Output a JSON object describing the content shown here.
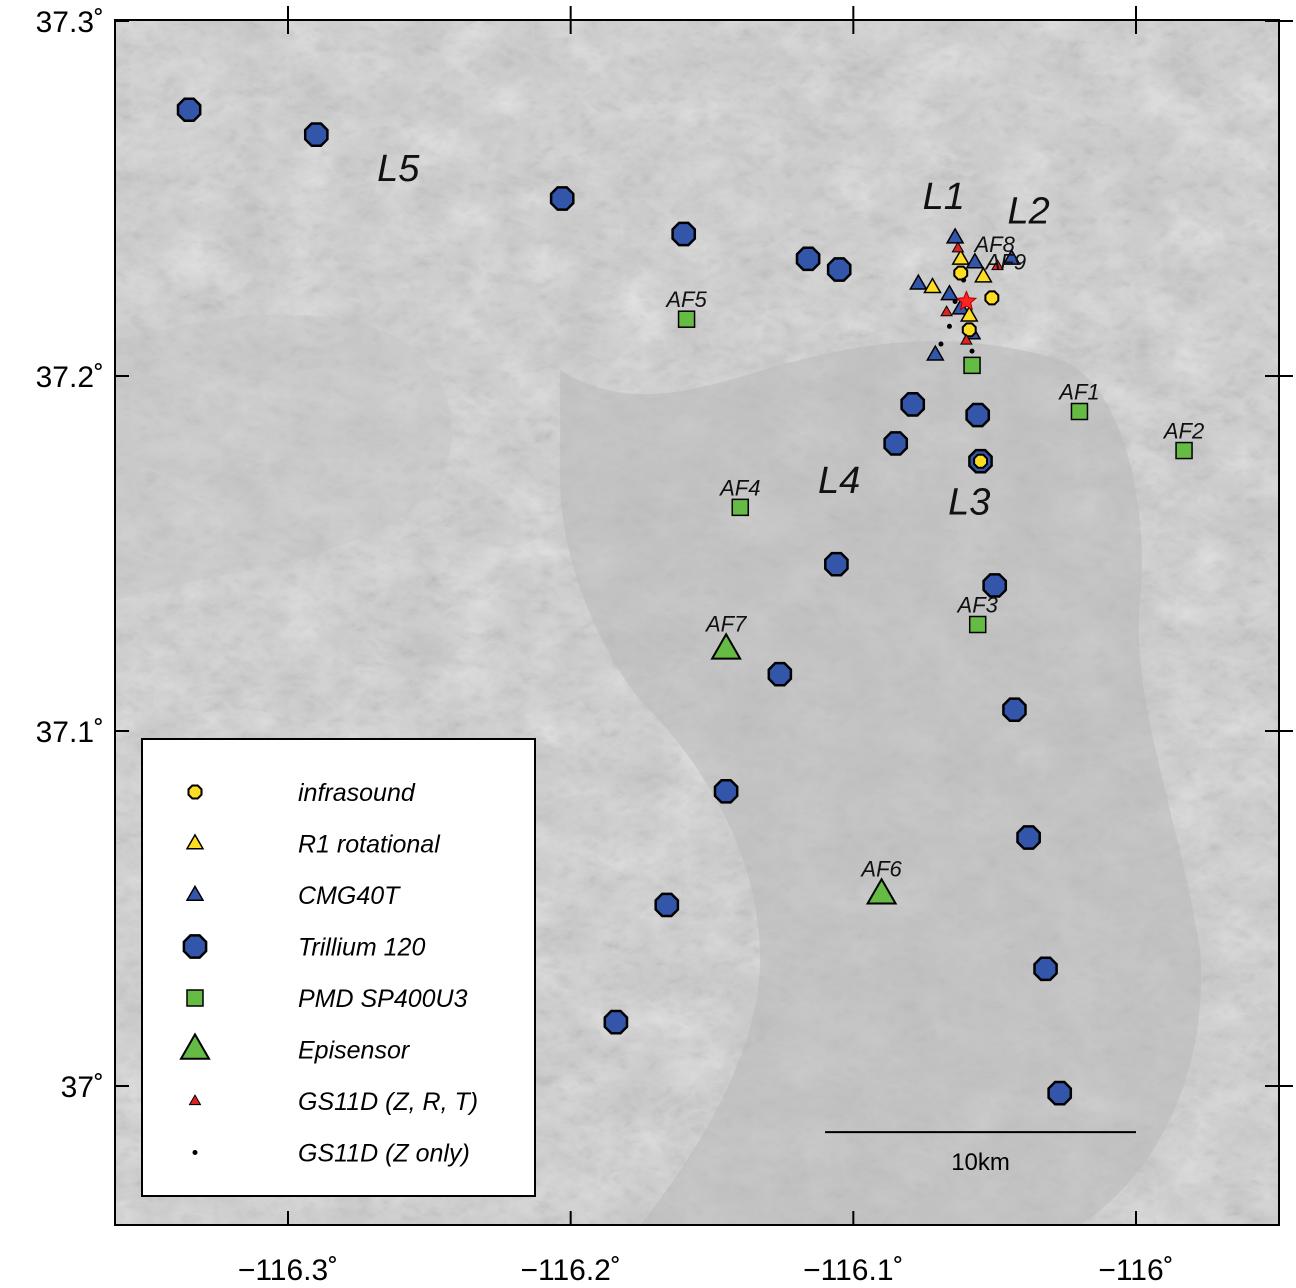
{
  "map": {
    "lon_range": [
      -116.35,
      -115.95
    ],
    "lat_range": [
      37.0,
      37.3
    ],
    "x_ticks": [
      {
        "value": -116.3,
        "label": "−116.3˚"
      },
      {
        "value": -116.2,
        "label": "−116.2˚"
      },
      {
        "value": -116.1,
        "label": "−116.1˚"
      },
      {
        "value": -116.0,
        "label": "−116˚"
      }
    ],
    "y_ticks": [
      {
        "value": 37.3,
        "label": "37.3˚"
      },
      {
        "value": 37.2,
        "label": "37.2˚"
      },
      {
        "value": 37.1,
        "label": "37.1˚"
      },
      {
        "value": 37.0,
        "label": "37˚"
      }
    ],
    "colors": {
      "trillium": "#3355aa",
      "infrasound": "#ffdd22",
      "r1": "#ffdd22",
      "cmg40t": "#3355aa",
      "pmd": "#66bb44",
      "episensor": "#66bb44",
      "gs11d": "#dd2222",
      "source_star": "#ff2222",
      "terrain_light": "#d4d4d4",
      "terrain_dark": "#9a9a9a"
    },
    "region_labels": [
      {
        "text": "L5",
        "lon": -116.261,
        "lat": 37.255
      },
      {
        "text": "L1",
        "lon": -116.068,
        "lat": 37.247
      },
      {
        "text": "L2",
        "lon": -116.038,
        "lat": 37.243
      },
      {
        "text": "L4",
        "lon": -116.105,
        "lat": 37.167
      },
      {
        "text": "L3",
        "lon": -116.059,
        "lat": 37.161
      }
    ],
    "scale_bar": {
      "label": "10km",
      "lon_start": -116.11,
      "lon_end": -116.0,
      "lat": 36.987
    }
  },
  "legend": {
    "items": [
      {
        "symbol": "infrasound",
        "label": "infrasound"
      },
      {
        "symbol": "r1",
        "label": "R1 rotational"
      },
      {
        "symbol": "cmg40t",
        "label": "CMG40T"
      },
      {
        "symbol": "trillium",
        "label": "Trillium 120"
      },
      {
        "symbol": "pmd",
        "label": "PMD SP400U3"
      },
      {
        "symbol": "episensor",
        "label": "Episensor"
      },
      {
        "symbol": "gs11d_zrt",
        "label": "GS11D (Z, R, T)"
      },
      {
        "symbol": "gs11d_z",
        "label": "GS11D (Z only)"
      }
    ]
  },
  "stations": {
    "trillium": [
      {
        "lon": -116.335,
        "lat": 37.275
      },
      {
        "lon": -116.29,
        "lat": 37.268
      },
      {
        "lon": -116.203,
        "lat": 37.25
      },
      {
        "lon": -116.16,
        "lat": 37.24
      },
      {
        "lon": -116.116,
        "lat": 37.233
      },
      {
        "lon": -116.105,
        "lat": 37.23
      },
      {
        "lon": -116.079,
        "lat": 37.192
      },
      {
        "lon": -116.085,
        "lat": 37.181
      },
      {
        "lon": -116.056,
        "lat": 37.189
      },
      {
        "lon": -116.055,
        "lat": 37.176
      },
      {
        "lon": -116.106,
        "lat": 37.147
      },
      {
        "lon": -116.05,
        "lat": 37.141
      },
      {
        "lon": -116.126,
        "lat": 37.116
      },
      {
        "lon": -116.043,
        "lat": 37.106
      },
      {
        "lon": -116.145,
        "lat": 37.083
      },
      {
        "lon": -116.038,
        "lat": 37.07
      },
      {
        "lon": -116.166,
        "lat": 37.051
      },
      {
        "lon": -116.032,
        "lat": 37.033
      },
      {
        "lon": -116.184,
        "lat": 37.018
      },
      {
        "lon": -116.027,
        "lat": 36.998
      }
    ],
    "infrasound": [
      {
        "lon": -116.055,
        "lat": 37.176
      },
      {
        "lon": -116.059,
        "lat": 37.213
      },
      {
        "lon": -116.051,
        "lat": 37.222
      },
      {
        "lon": -116.062,
        "lat": 37.229
      }
    ],
    "r1": [
      {
        "lon": -116.072,
        "lat": 37.225
      },
      {
        "lon": -116.062,
        "lat": 37.233
      },
      {
        "lon": -116.054,
        "lat": 37.228
      },
      {
        "lon": -116.059,
        "lat": 37.217
      }
    ],
    "cmg40t": [
      {
        "lon": -116.077,
        "lat": 37.226
      },
      {
        "lon": -116.064,
        "lat": 37.239
      },
      {
        "lon": -116.044,
        "lat": 37.233
      },
      {
        "lon": -116.071,
        "lat": 37.206
      },
      {
        "lon": -116.058,
        "lat": 37.212
      },
      {
        "lon": -116.062,
        "lat": 37.219
      },
      {
        "lon": -116.057,
        "lat": 37.232
      },
      {
        "lon": -116.066,
        "lat": 37.223
      }
    ],
    "pmd": [
      {
        "lon": -116.159,
        "lat": 37.216,
        "label": "AF5"
      },
      {
        "lon": -116.02,
        "lat": 37.19,
        "label": "AF1"
      },
      {
        "lon": -115.983,
        "lat": 37.179,
        "label": "AF2"
      },
      {
        "lon": -116.14,
        "lat": 37.163,
        "label": "AF4"
      },
      {
        "lon": -116.056,
        "lat": 37.13,
        "label": "AF3"
      },
      {
        "lon": -116.058,
        "lat": 37.203,
        "label": ""
      }
    ],
    "episensor": [
      {
        "lon": -116.145,
        "lat": 37.123,
        "label": "AF7"
      },
      {
        "lon": -116.09,
        "lat": 37.054,
        "label": "AF6"
      }
    ],
    "gs11d_zrt": [
      {
        "lon": -116.049,
        "lat": 37.231
      },
      {
        "lon": -116.063,
        "lat": 37.236
      },
      {
        "lon": -116.067,
        "lat": 37.218
      },
      {
        "lon": -116.06,
        "lat": 37.21
      }
    ],
    "gs11d_z": [
      {
        "lon": -116.066,
        "lat": 37.214
      },
      {
        "lon": -116.069,
        "lat": 37.209
      },
      {
        "lon": -116.064,
        "lat": 37.221
      },
      {
        "lon": -116.061,
        "lat": 37.227
      },
      {
        "lon": -116.058,
        "lat": 37.207
      }
    ],
    "overlay_labels": [
      {
        "text": "AF8",
        "lon": -116.05,
        "lat": 37.235
      },
      {
        "text": "AF9",
        "lon": -116.046,
        "lat": 37.23
      }
    ],
    "source": {
      "lon": -116.06,
      "lat": 37.221
    }
  }
}
